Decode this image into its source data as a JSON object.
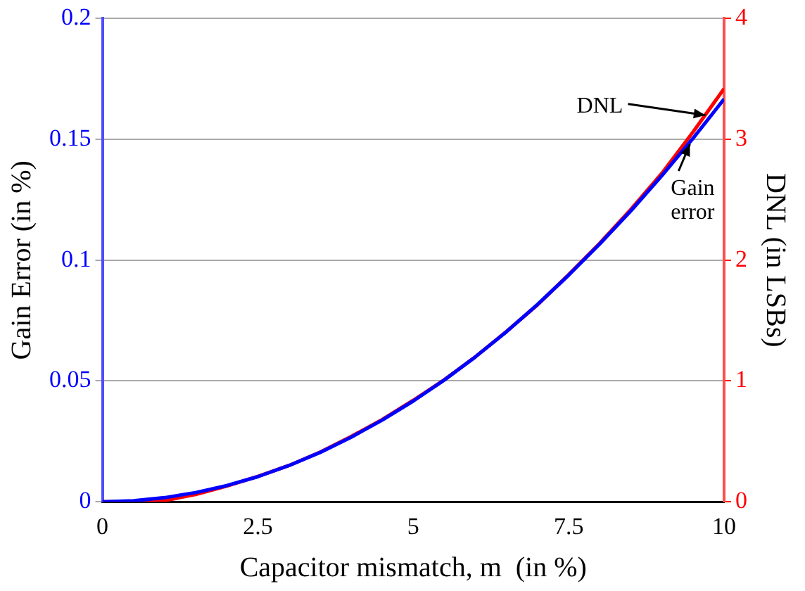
{
  "chart_data": {
    "type": "line",
    "xlabel": "Capacitor mismatch, m  (in %)",
    "ylabel": "Gain Error (in %)",
    "y2label": "DNL (in LSBs)",
    "x": [
      0,
      0.5,
      1,
      1.5,
      2,
      2.5,
      3,
      3.5,
      4,
      4.5,
      5,
      5.5,
      6,
      6.5,
      7,
      7.5,
      8,
      8.5,
      9,
      9.5,
      10
    ],
    "series": [
      {
        "color": "#0000ff",
        "values": [
          0,
          0.0004,
          0.0017,
          0.0038,
          0.0067,
          0.0104,
          0.015,
          0.0204,
          0.0267,
          0.0338,
          0.0417,
          0.0504,
          0.06,
          0.0704,
          0.0817,
          0.0938,
          0.1067,
          0.1204,
          0.135,
          0.1504,
          0.1667
        ]
      },
      {
        "color": "#ff0000",
        "axis": "y2",
        "values": [
          0,
          0,
          0.01,
          0.06,
          0.13,
          0.21,
          0.3,
          0.41,
          0.54,
          0.68,
          0.84,
          1.01,
          1.2,
          1.41,
          1.63,
          1.88,
          2.14,
          2.42,
          2.72,
          3.06,
          3.42
        ]
      }
    ],
    "xlim": [
      0,
      10
    ],
    "xticks": [
      0,
      2.5,
      5,
      7.5,
      10
    ],
    "ylim": [
      0,
      0.2
    ],
    "yticks": [
      0,
      0.05,
      0.1,
      0.15,
      0.2
    ],
    "y2lim": [
      0,
      4
    ],
    "y2ticks": [
      0,
      1,
      2,
      3,
      4
    ],
    "annotations": [
      {
        "text": "DNL",
        "x": 9.7,
        "y": 0.16
      },
      {
        "text": "Gain\nerror",
        "x": 9.45,
        "y": 0.148
      }
    ],
    "grid": "y",
    "legend": false,
    "marker": "none",
    "line_style": "solid"
  }
}
